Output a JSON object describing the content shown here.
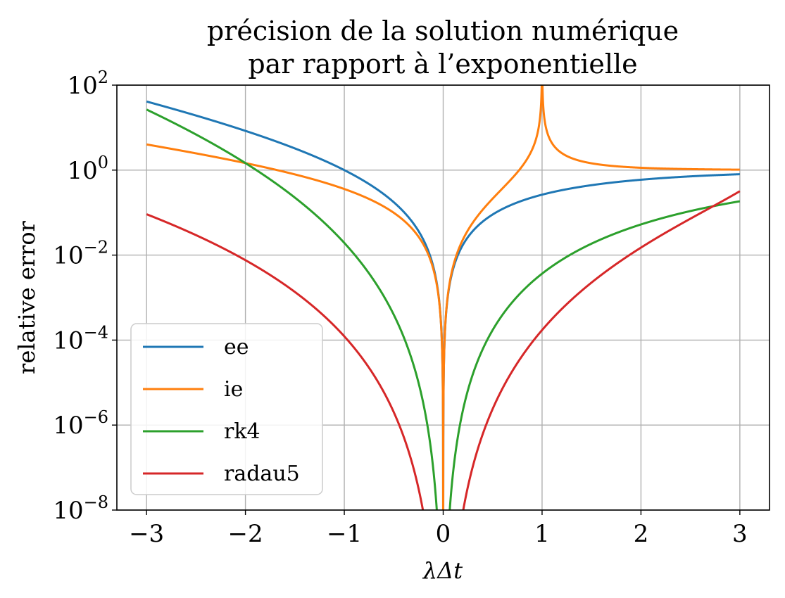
{
  "chart_data": {
    "type": "line",
    "title_lines": [
      "précision de la solution numérique",
      "par rapport à l’exponentielle"
    ],
    "xlabel": "λΔt",
    "ylabel": "relative error",
    "yscale": "log",
    "xlim": [
      -3.3,
      3.3
    ],
    "ylim": [
      1e-08,
      100
    ],
    "xticks": [
      -3,
      -2,
      -1,
      0,
      1,
      2,
      3
    ],
    "xtick_labels": [
      "−3",
      "−2",
      "−1",
      "0",
      "1",
      "2",
      "3"
    ],
    "yticks": [
      {
        "value": 100,
        "base": "10",
        "exp": "2"
      },
      {
        "value": 1,
        "base": "10",
        "exp": "0"
      },
      {
        "value": 0.01,
        "base": "10",
        "exp": "−2"
      },
      {
        "value": 0.0001,
        "base": "10",
        "exp": "−4"
      },
      {
        "value": 1e-06,
        "base": "10",
        "exp": "−6"
      },
      {
        "value": 1e-08,
        "base": "10",
        "exp": "−8"
      }
    ],
    "grid": true,
    "legend_position": "lower-left",
    "series": [
      {
        "name": "ee",
        "color": "#1f77b4",
        "method": "explicit-euler"
      },
      {
        "name": "ie",
        "color": "#ff7f0e",
        "method": "implicit-euler"
      },
      {
        "name": "rk4",
        "color": "#2ca02c",
        "method": "rk4"
      },
      {
        "name": "radau5",
        "color": "#d62728",
        "method": "radau5"
      }
    ],
    "x_range": [
      -3,
      3
    ]
  }
}
